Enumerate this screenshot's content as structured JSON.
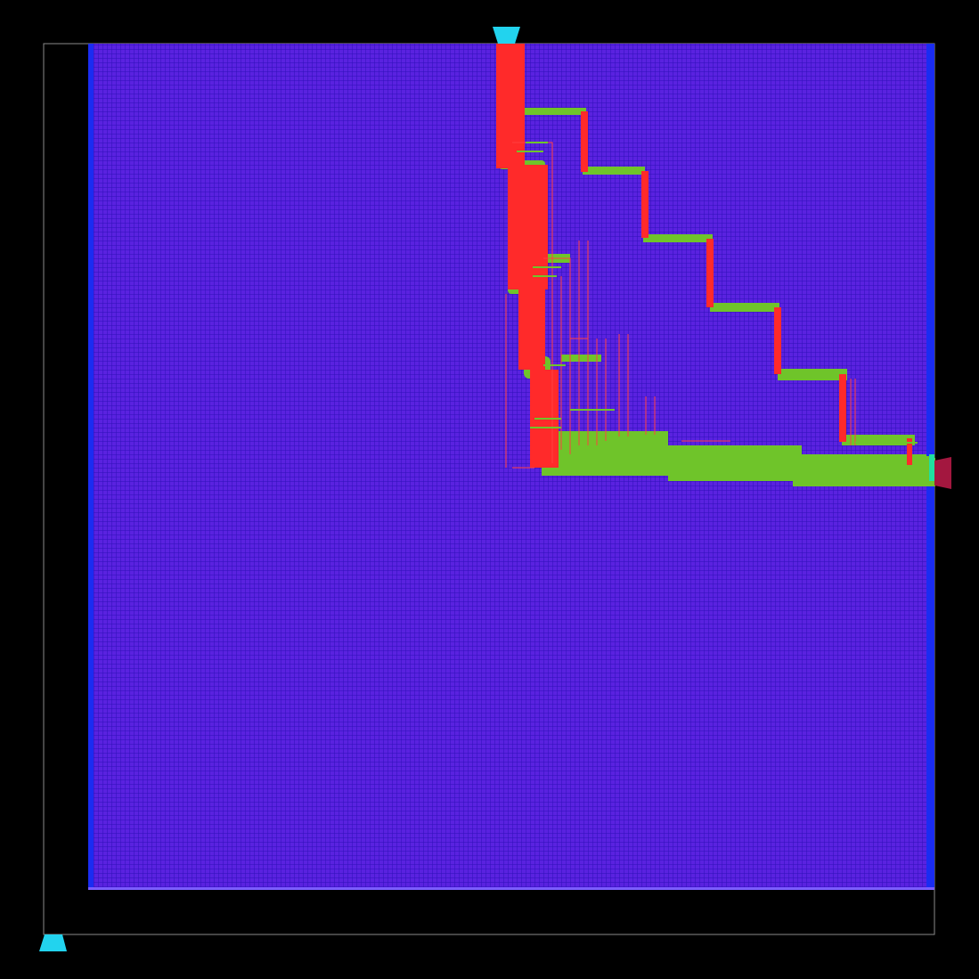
{
  "view": {
    "background_color": "#000000",
    "die_outline_color": "#8a8a8a",
    "core_fill_color": "#5a22e0",
    "core_grid_color": "#2f10b8",
    "core_edge_strap_color": "#1a2cf2",
    "routing_colors": {
      "vertical_metal": "#ff2a2a",
      "horizontal_metal": "#6fc42a",
      "thin_route": "#ff4040"
    },
    "pins": {
      "top_pin_color": "#22d3ee",
      "bottom_left_pin_color": "#22d3ee",
      "right_pin_color": "#a3173f"
    }
  }
}
